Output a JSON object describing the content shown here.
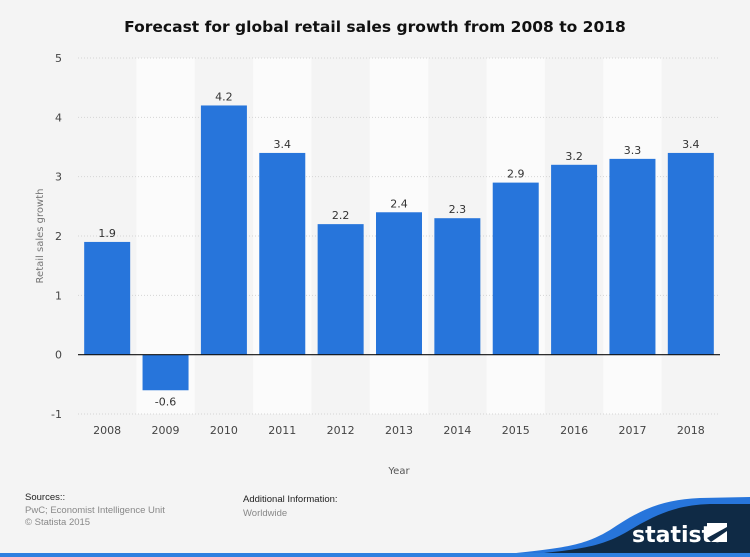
{
  "chart_data": {
    "type": "bar",
    "title": "Forecast for global retail sales growth from 2008 to 2018",
    "xlabel": "Year",
    "ylabel": "Retail sales growth",
    "categories": [
      "2008",
      "2009",
      "2010",
      "2011",
      "2012",
      "2013",
      "2014",
      "2015",
      "2016",
      "2017",
      "2018"
    ],
    "values": [
      1.9,
      -0.6,
      4.2,
      3.4,
      2.2,
      2.4,
      2.3,
      2.9,
      3.2,
      3.3,
      3.4
    ],
    "ylim": [
      -1,
      5
    ],
    "yticks": [
      "-1",
      "0",
      "1",
      "2",
      "3",
      "4",
      "5"
    ],
    "grid": true,
    "bar_color": "#2775db"
  },
  "footer": {
    "sources_label": "Sources::",
    "sources_text": "PwC; Economist Intelligence Unit",
    "copyright": "© Statista 2015",
    "additional_label": "Additional Information:",
    "additional_text": "Worldwide",
    "brand": "statista"
  }
}
